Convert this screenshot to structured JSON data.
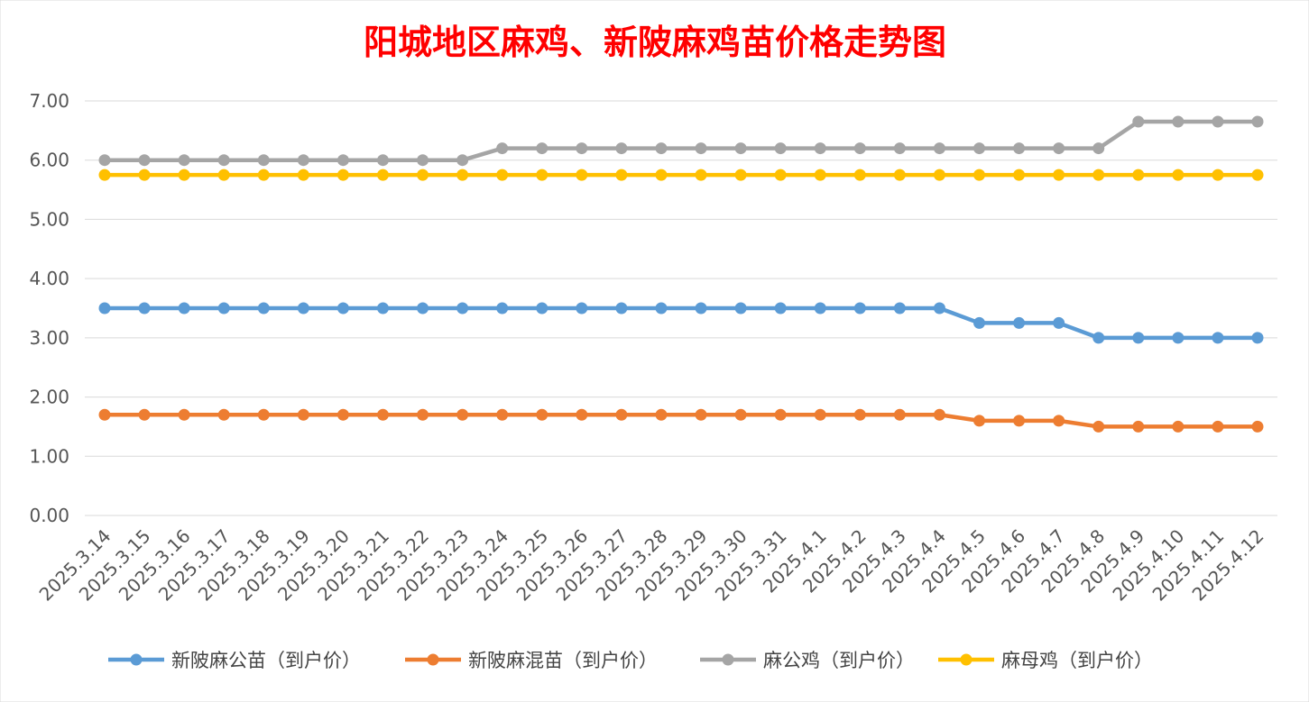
{
  "chart_data": {
    "type": "line",
    "title": "阳城地区麻鸡、新陂麻鸡苗价格走势图",
    "xlabel": "",
    "ylabel": "",
    "ylim": [
      0,
      7
    ],
    "yticks": [
      "0.00",
      "1.00",
      "2.00",
      "3.00",
      "4.00",
      "5.00",
      "6.00",
      "7.00"
    ],
    "grid": true,
    "legend_position": "bottom",
    "categories": [
      "2025.3.14",
      "2025.3.15",
      "2025.3.16",
      "2025.3.17",
      "2025.3.18",
      "2025.3.19",
      "2025.3.20",
      "2025.3.21",
      "2025.3.22",
      "2025.3.23",
      "2025.3.24",
      "2025.3.25",
      "2025.3.26",
      "2025.3.27",
      "2025.3.28",
      "2025.3.29",
      "2025.3.30",
      "2025.3.31",
      "2025.4.1",
      "2025.4.2",
      "2025.4.3",
      "2025.4.4",
      "2025.4.5",
      "2025.4.6",
      "2025.4.7",
      "2025.4.8",
      "2025.4.9",
      "2025.4.10",
      "2025.4.11",
      "2025.4.12"
    ],
    "series": [
      {
        "name": "新陂麻公苗（到户价）",
        "color": "#5b9bd5",
        "values": [
          3.5,
          3.5,
          3.5,
          3.5,
          3.5,
          3.5,
          3.5,
          3.5,
          3.5,
          3.5,
          3.5,
          3.5,
          3.5,
          3.5,
          3.5,
          3.5,
          3.5,
          3.5,
          3.5,
          3.5,
          3.5,
          3.5,
          3.25,
          3.25,
          3.25,
          3.0,
          3.0,
          3.0,
          3.0,
          3.0
        ]
      },
      {
        "name": "新陂麻混苗（到户价）",
        "color": "#ed7d31",
        "values": [
          1.7,
          1.7,
          1.7,
          1.7,
          1.7,
          1.7,
          1.7,
          1.7,
          1.7,
          1.7,
          1.7,
          1.7,
          1.7,
          1.7,
          1.7,
          1.7,
          1.7,
          1.7,
          1.7,
          1.7,
          1.7,
          1.7,
          1.6,
          1.6,
          1.6,
          1.5,
          1.5,
          1.5,
          1.5,
          1.5
        ]
      },
      {
        "name": "麻公鸡（到户价）",
        "color": "#a5a5a5",
        "values": [
          6.0,
          6.0,
          6.0,
          6.0,
          6.0,
          6.0,
          6.0,
          6.0,
          6.0,
          6.0,
          6.2,
          6.2,
          6.2,
          6.2,
          6.2,
          6.2,
          6.2,
          6.2,
          6.2,
          6.2,
          6.2,
          6.2,
          6.2,
          6.2,
          6.2,
          6.2,
          6.65,
          6.65,
          6.65,
          6.65
        ]
      },
      {
        "name": "麻母鸡（到户价）",
        "color": "#ffc000",
        "values": [
          5.75,
          5.75,
          5.75,
          5.75,
          5.75,
          5.75,
          5.75,
          5.75,
          5.75,
          5.75,
          5.75,
          5.75,
          5.75,
          5.75,
          5.75,
          5.75,
          5.75,
          5.75,
          5.75,
          5.75,
          5.75,
          5.75,
          5.75,
          5.75,
          5.75,
          5.75,
          5.75,
          5.75,
          5.75,
          5.75
        ]
      }
    ]
  }
}
